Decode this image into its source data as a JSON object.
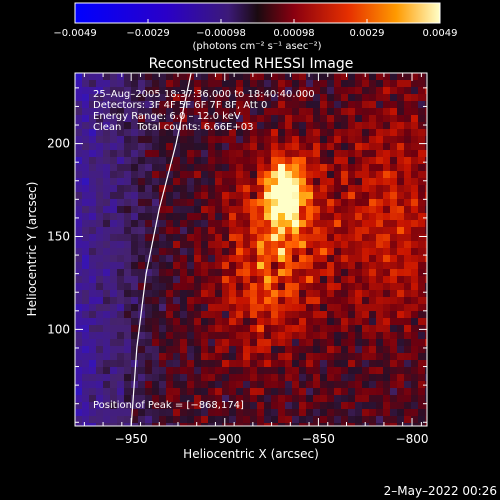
{
  "chart_data": {
    "type": "heatmap",
    "title": "Reconstructed RHESSI Image",
    "xlabel": "Heliocentric X (arcsec)",
    "ylabel": "Heliocentric Y (arcsec)",
    "xlim": [
      -980,
      -792
    ],
    "ylim": [
      48,
      238
    ],
    "x_ticks": [
      -950,
      -900,
      -850,
      -800
    ],
    "x_tick_labels": [
      "−950",
      "−900",
      "−850",
      "−800"
    ],
    "y_ticks": [
      100,
      150,
      200
    ],
    "y_tick_labels": [
      "100",
      "150",
      "200"
    ],
    "colorbar": {
      "range": [
        -0.0049,
        0.0049
      ],
      "tick_labels": [
        "−0.0049",
        "−0.0029",
        "−0.00098",
        "0.00098",
        "0.0029",
        "0.0049"
      ],
      "units": "(photons cm⁻² s⁻¹ asec⁻²)"
    },
    "annotations": [
      "25–Aug–2005 18:37:36.000 to 18:40:40.000",
      "Detectors: 3F 4F 5F 6F 7F 8F, Att 0",
      "Energy Range: 6.0 – 12.0 keV",
      "Clean     Total counts: 6.66E+03"
    ],
    "peak_label": "Position of Peak = [−868,174]",
    "peak": [
      -868,
      174
    ],
    "limb_curve": [
      [
        -950,
        48
      ],
      [
        -947,
        90
      ],
      [
        -942,
        130
      ],
      [
        -935,
        165
      ],
      [
        -926,
        200
      ],
      [
        -918,
        238
      ]
    ]
  },
  "footer": {
    "timestamp": "2–May–2022 00:26"
  }
}
